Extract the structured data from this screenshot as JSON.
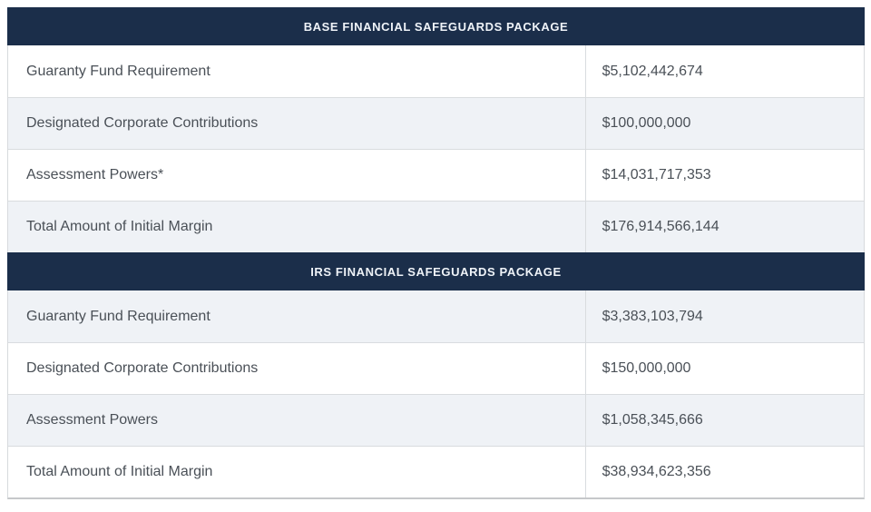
{
  "table": {
    "sections": [
      {
        "header": "BASE FINANCIAL SAFEGUARDS PACKAGE",
        "rows": [
          {
            "label": "Guaranty Fund Requirement",
            "value": "$5,102,442,674"
          },
          {
            "label": "Designated Corporate Contributions",
            "value": "$100,000,000"
          },
          {
            "label": "Assessment Powers*",
            "value": "$14,031,717,353"
          },
          {
            "label": "Total Amount of Initial Margin",
            "value": "$176,914,566,144"
          }
        ]
      },
      {
        "header": "IRS FINANCIAL SAFEGUARDS PACKAGE",
        "rows": [
          {
            "label": "Guaranty Fund Requirement",
            "value": "$3,383,103,794"
          },
          {
            "label": "Designated Corporate Contributions",
            "value": "$150,000,000"
          },
          {
            "label": "Assessment Powers",
            "value": "$1,058,345,666"
          },
          {
            "label": "Total Amount of Initial Margin",
            "value": "$38,934,623,356"
          }
        ]
      }
    ]
  },
  "colors": {
    "header_bg": "#1b2e4a",
    "header_text": "#eff3f8",
    "row_bg": "#ffffff",
    "row_alt_bg": "#eff2f6",
    "row_border": "#d9dcdf",
    "cell_text": "#4a5057"
  }
}
